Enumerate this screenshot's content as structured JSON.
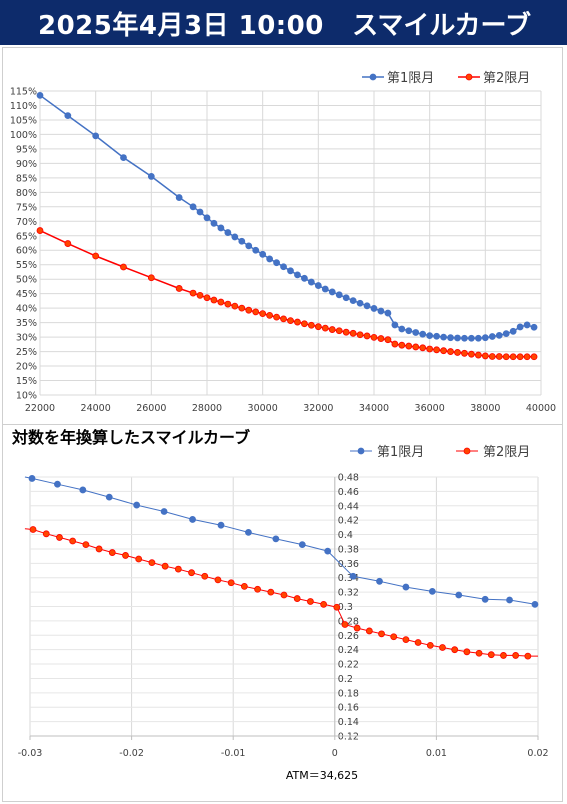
{
  "header": {
    "datetime": "2025年4月3日 10:00",
    "title": "スマイルカーブ"
  },
  "colors": {
    "series1": "#4472c4",
    "series2": "#ff0000",
    "marker2_fill": "#ff4500",
    "header_bg": "#0d2b6b"
  },
  "chart_data": [
    {
      "type": "line",
      "title": "",
      "xlabel": "",
      "ylabel": "",
      "xlim": [
        22000,
        40000
      ],
      "ylim": [
        10,
        115
      ],
      "x_ticks": [
        "22000",
        "24000",
        "26000",
        "28000",
        "30000",
        "32000",
        "34000",
        "36000",
        "38000",
        "40000"
      ],
      "y_ticks": [
        "10%",
        "15%",
        "20%",
        "25%",
        "30%",
        "35%",
        "40%",
        "45%",
        "50%",
        "55%",
        "60%",
        "65%",
        "70%",
        "75%",
        "80%",
        "85%",
        "90%",
        "95%",
        "100%",
        "105%",
        "110%",
        "115%"
      ],
      "legend_position": "top-right",
      "series": [
        {
          "name": "第1限月",
          "x": [
            22000,
            23000,
            24000,
            25000,
            26000,
            27000,
            27500,
            27750,
            28000,
            28250,
            28500,
            28750,
            29000,
            29250,
            29500,
            29750,
            30000,
            30250,
            30500,
            30750,
            31000,
            31250,
            31500,
            31750,
            32000,
            32250,
            32500,
            32750,
            33000,
            33250,
            33500,
            33750,
            34000,
            34250,
            34500,
            34750,
            35000,
            35250,
            35500,
            35750,
            36000,
            36250,
            36500,
            36750,
            37000,
            37250,
            37500,
            37750,
            38000,
            38250,
            38500,
            38750,
            39000,
            39250,
            39500,
            39750
          ],
          "y": [
            113.5,
            106.5,
            99.5,
            92.0,
            85.5,
            78.2,
            75.0,
            73.2,
            71.2,
            69.3,
            67.7,
            66.1,
            64.6,
            63.1,
            61.5,
            60.0,
            58.6,
            57.0,
            55.7,
            54.3,
            52.9,
            51.5,
            50.3,
            49.0,
            47.8,
            46.6,
            45.6,
            44.6,
            43.6,
            42.6,
            41.7,
            40.8,
            39.9,
            39.0,
            38.3,
            34.2,
            32.8,
            32.2,
            31.6,
            31.0,
            30.5,
            30.3,
            30.0,
            29.8,
            29.7,
            29.6,
            29.6,
            29.6,
            29.8,
            30.2,
            30.6,
            31.2,
            32.0,
            33.5,
            34.2,
            33.4
          ]
        },
        {
          "name": "第2限月",
          "x": [
            22000,
            23000,
            24000,
            25000,
            26000,
            27000,
            27500,
            27750,
            28000,
            28250,
            28500,
            28750,
            29000,
            29250,
            29500,
            29750,
            30000,
            30250,
            30500,
            30750,
            31000,
            31250,
            31500,
            31750,
            32000,
            32250,
            32500,
            32750,
            33000,
            33250,
            33500,
            33750,
            34000,
            34250,
            34500,
            34750,
            35000,
            35250,
            35500,
            35750,
            36000,
            36250,
            36500,
            36750,
            37000,
            37250,
            37500,
            37750,
            38000,
            38250,
            38500,
            38750,
            39000,
            39250,
            39500,
            39750
          ],
          "y": [
            66.8,
            62.3,
            58.0,
            54.2,
            50.5,
            46.8,
            45.2,
            44.4,
            43.6,
            42.8,
            42.1,
            41.4,
            40.7,
            40.0,
            39.3,
            38.7,
            38.1,
            37.5,
            36.9,
            36.3,
            35.7,
            35.2,
            34.6,
            34.1,
            33.6,
            33.1,
            32.6,
            32.2,
            31.7,
            31.3,
            30.8,
            30.4,
            29.9,
            29.5,
            29.1,
            27.6,
            27.2,
            26.9,
            26.6,
            26.3,
            25.9,
            25.6,
            25.3,
            25.0,
            24.7,
            24.4,
            24.1,
            23.8,
            23.5,
            23.3,
            23.3,
            23.2,
            23.2,
            23.2,
            23.2,
            23.2
          ]
        }
      ]
    },
    {
      "type": "line",
      "title": "対数を年換算したスマイルカーブ",
      "xlabel": "ATM＝34,625",
      "ylabel": "",
      "xlim": [
        -0.03,
        0.02
      ],
      "ylim": [
        0.12,
        0.48
      ],
      "x_ticks": [
        "-0.03",
        "-0.02",
        "-0.01",
        "0",
        "0.01",
        "0.02"
      ],
      "y_ticks": [
        "0.12",
        "0.14",
        "0.16",
        "0.18",
        "0.2",
        "0.22",
        "0.24",
        "0.26",
        "0.28",
        "0.3",
        "0.32",
        "0.34",
        "0.36",
        "0.38",
        "0.4",
        "0.42",
        "0.44",
        "0.46",
        "0.48"
      ],
      "legend_position": "top-right",
      "series": [
        {
          "name": "第1限月",
          "x": [
            -0.0298,
            -0.0273,
            -0.0248,
            -0.0222,
            -0.0195,
            -0.0168,
            -0.014,
            -0.0112,
            -0.0085,
            -0.0058,
            -0.0032,
            -0.0007,
            0.0018,
            0.0044,
            0.007,
            0.0096,
            0.0122,
            0.0148,
            0.0172,
            0.0197
          ],
          "y": [
            0.478,
            0.47,
            0.462,
            0.452,
            0.441,
            0.432,
            0.421,
            0.413,
            0.403,
            0.394,
            0.386,
            0.377,
            0.342,
            0.335,
            0.327,
            0.321,
            0.316,
            0.31,
            0.309,
            0.303
          ]
        },
        {
          "name": "第2限月",
          "x": [
            -0.0297,
            -0.0284,
            -0.0271,
            -0.0258,
            -0.0245,
            -0.0232,
            -0.0219,
            -0.0206,
            -0.0193,
            -0.018,
            -0.0167,
            -0.0154,
            -0.0141,
            -0.0128,
            -0.0115,
            -0.0102,
            -0.0089,
            -0.0076,
            -0.0063,
            -0.005,
            -0.0037,
            -0.0024,
            -0.0011,
            0.0002,
            0.001,
            0.0022,
            0.0034,
            0.0046,
            0.0058,
            0.007,
            0.0082,
            0.0094,
            0.0106,
            0.0118,
            0.013,
            0.0142,
            0.0154,
            0.0166,
            0.0178,
            0.019
          ],
          "y": [
            0.407,
            0.401,
            0.396,
            0.391,
            0.386,
            0.38,
            0.375,
            0.371,
            0.366,
            0.361,
            0.356,
            0.352,
            0.347,
            0.342,
            0.337,
            0.333,
            0.328,
            0.324,
            0.32,
            0.316,
            0.311,
            0.307,
            0.303,
            0.299,
            0.275,
            0.27,
            0.266,
            0.262,
            0.258,
            0.254,
            0.25,
            0.246,
            0.243,
            0.24,
            0.237,
            0.235,
            0.233,
            0.232,
            0.232,
            0.231
          ]
        }
      ]
    }
  ]
}
